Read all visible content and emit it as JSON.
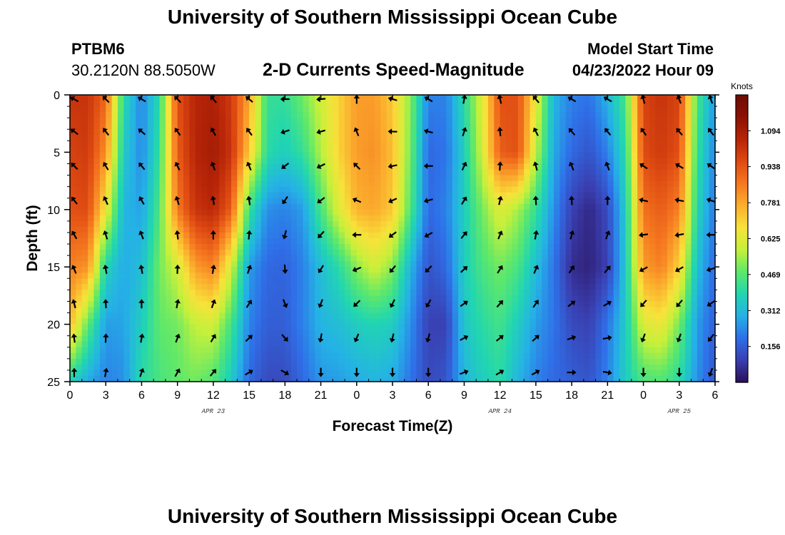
{
  "page": {
    "title": "University of Southern Mississippi Ocean Cube",
    "footer_title": "University of Southern Mississippi Ocean Cube",
    "station": "PTBM6",
    "coords": "30.2120N  88.5050W",
    "model_start_label": "Model Start Time",
    "model_start_value": "04/23/2022 Hour 09"
  },
  "chart_data": {
    "type": "heatmap",
    "title": "2-D Currents Speed-Magnitude",
    "xlabel": "Forecast Time(Z)",
    "ylabel": "Depth (ft)",
    "x_range_hours": [
      0,
      54
    ],
    "y_range_ft": [
      0,
      25
    ],
    "x_ticks": [
      "0",
      "3",
      "6",
      "9",
      "12",
      "15",
      "18",
      "21",
      "0",
      "3",
      "6",
      "9",
      "12",
      "15",
      "18",
      "21",
      "0",
      "3",
      "6"
    ],
    "y_ticks": [
      "0",
      "5",
      "10",
      "15",
      "20",
      "25"
    ],
    "date_labels": [
      {
        "text": "APR 23",
        "hour": 12
      },
      {
        "text": "APR 24",
        "hour": 36
      },
      {
        "text": "APR 25",
        "hour": 51
      }
    ],
    "colorbar": {
      "label": "Knots",
      "ticks": [
        "1.094",
        "0.938",
        "0.781",
        "0.625",
        "0.469",
        "0.312",
        "0.156"
      ],
      "tick_values": [
        1.094,
        0.938,
        0.781,
        0.625,
        0.469,
        0.312,
        0.156
      ],
      "range": [
        0,
        1.25
      ],
      "colors": [
        "#2a0f58",
        "#3a3fb0",
        "#2f6fe8",
        "#25b1e6",
        "#21d6b0",
        "#5ee86a",
        "#c6f03a",
        "#f7e23a",
        "#fbae2e",
        "#f57820",
        "#de4a12",
        "#b72508",
        "#8c1204",
        "#6e0b04"
      ]
    },
    "vector_depths_ft": [
      0.2,
      3.2,
      6.2,
      9.2,
      12.2,
      15.2,
      18.2,
      21.2,
      24.2
    ],
    "vector_hours": [
      0,
      3,
      6,
      9,
      12,
      15,
      18,
      21,
      24,
      27,
      30,
      33,
      36,
      39,
      42,
      45,
      48,
      51,
      54
    ],
    "speed_columns": {
      "hours": [
        0,
        1.5,
        3,
        4.5,
        6,
        7.5,
        9,
        10.5,
        12,
        13.5,
        15,
        16.5,
        18,
        19.5,
        21,
        22.5,
        24,
        25.5,
        27,
        28.5,
        30,
        31.5,
        33,
        34.5,
        36,
        37.5,
        39,
        40.5,
        42,
        43.5,
        45,
        46.5,
        48,
        49.5,
        51,
        52.5,
        54
      ],
      "depths": [
        0,
        5,
        10,
        15,
        20,
        25
      ],
      "values": [
        [
          1.02,
          0.98,
          0.95,
          0.85,
          0.75,
          0.38
        ],
        [
          1.02,
          1.0,
          0.96,
          0.82,
          0.48,
          0.28
        ],
        [
          0.9,
          0.82,
          0.65,
          0.38,
          0.26,
          0.22
        ],
        [
          0.4,
          0.35,
          0.3,
          0.28,
          0.27,
          0.24
        ],
        [
          0.22,
          0.23,
          0.27,
          0.32,
          0.36,
          0.4
        ],
        [
          0.4,
          0.42,
          0.46,
          0.5,
          0.48,
          0.45
        ],
        [
          0.95,
          0.92,
          0.86,
          0.6,
          0.5,
          0.48
        ],
        [
          1.06,
          1.06,
          1.02,
          0.8,
          0.58,
          0.5
        ],
        [
          1.08,
          1.1,
          1.05,
          0.85,
          0.6,
          0.46
        ],
        [
          1.0,
          1.02,
          0.92,
          0.6,
          0.44,
          0.35
        ],
        [
          0.78,
          0.72,
          0.42,
          0.26,
          0.22,
          0.18
        ],
        [
          0.42,
          0.4,
          0.24,
          0.18,
          0.16,
          0.12
        ],
        [
          0.42,
          0.36,
          0.22,
          0.17,
          0.16,
          0.12
        ],
        [
          0.5,
          0.42,
          0.26,
          0.22,
          0.22,
          0.18
        ],
        [
          0.6,
          0.56,
          0.45,
          0.32,
          0.3,
          0.25
        ],
        [
          0.7,
          0.7,
          0.62,
          0.4,
          0.32,
          0.26
        ],
        [
          0.8,
          0.8,
          0.76,
          0.52,
          0.36,
          0.28
        ],
        [
          0.8,
          0.82,
          0.78,
          0.6,
          0.38,
          0.3
        ],
        [
          0.72,
          0.74,
          0.72,
          0.52,
          0.36,
          0.28
        ],
        [
          0.52,
          0.5,
          0.46,
          0.3,
          0.24,
          0.2
        ],
        [
          0.22,
          0.18,
          0.18,
          0.14,
          0.1,
          0.12
        ],
        [
          0.22,
          0.2,
          0.22,
          0.18,
          0.1,
          0.14
        ],
        [
          0.4,
          0.36,
          0.36,
          0.36,
          0.34,
          0.3
        ],
        [
          0.62,
          0.6,
          0.5,
          0.45,
          0.4,
          0.36
        ],
        [
          0.95,
          0.92,
          0.62,
          0.5,
          0.44,
          0.4
        ],
        [
          0.95,
          0.95,
          0.55,
          0.45,
          0.36,
          0.3
        ],
        [
          0.65,
          0.58,
          0.42,
          0.32,
          0.26,
          0.22
        ],
        [
          0.3,
          0.28,
          0.24,
          0.2,
          0.2,
          0.18
        ],
        [
          0.22,
          0.18,
          0.1,
          0.06,
          0.12,
          0.16
        ],
        [
          0.2,
          0.14,
          0.05,
          0.04,
          0.1,
          0.14
        ],
        [
          0.3,
          0.22,
          0.12,
          0.1,
          0.2,
          0.22
        ],
        [
          0.45,
          0.4,
          0.35,
          0.34,
          0.35,
          0.36
        ],
        [
          0.98,
          0.96,
          0.88,
          0.8,
          0.62,
          0.45
        ],
        [
          1.02,
          1.0,
          0.92,
          0.85,
          0.65,
          0.46
        ],
        [
          0.98,
          0.95,
          0.85,
          0.7,
          0.5,
          0.4
        ],
        [
          0.45,
          0.42,
          0.38,
          0.32,
          0.26,
          0.24
        ],
        [
          0.25,
          0.22,
          0.2,
          0.18,
          0.16,
          0.14
        ]
      ]
    },
    "direction_columns": {
      "hours": [
        0,
        3,
        6,
        9,
        12,
        15,
        18,
        21,
        24,
        27,
        30,
        33,
        36,
        39,
        42,
        45,
        48,
        51,
        54
      ],
      "top_deg": [
        300,
        315,
        300,
        315,
        320,
        310,
        270,
        265,
        0,
        285,
        300,
        10,
        345,
        320,
        300,
        300,
        345,
        340,
        340
      ],
      "bottom_deg": [
        0,
        10,
        20,
        30,
        40,
        60,
        120,
        180,
        180,
        180,
        180,
        70,
        60,
        60,
        90,
        100,
        180,
        180,
        200
      ]
    }
  }
}
